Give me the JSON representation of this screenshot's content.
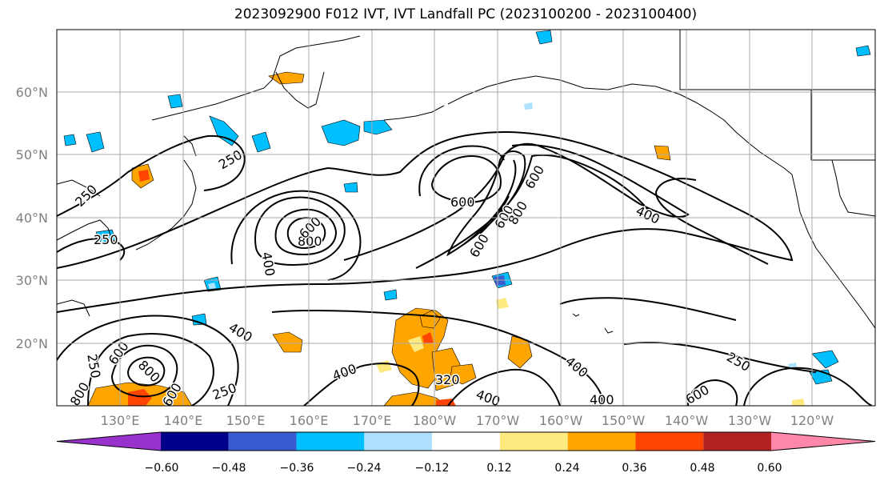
{
  "title": "2023092900 F012 IVT, IVT Landfall PC (2023100200 - 2023100400)",
  "map": {
    "lat_labels": [
      "20°N",
      "30°N",
      "40°N",
      "50°N",
      "60°N"
    ],
    "lon_labels": [
      "130°E",
      "140°E",
      "150°E",
      "160°E",
      "170°E",
      "180°W",
      "170°W",
      "160°W",
      "150°W",
      "140°W",
      "130°W",
      "120°W"
    ],
    "contour_labels": [
      "250",
      "250",
      "250",
      "600",
      "800",
      "400",
      "600",
      "600",
      "600",
      "400",
      "600",
      "400",
      "800",
      "250",
      "600",
      "250",
      "400",
      "400",
      "400",
      "400",
      "250",
      "600",
      "600",
      "800",
      "800",
      "320"
    ]
  },
  "colorbar": {
    "colors": [
      "#9932cc",
      "#00008b",
      "#3a5bd0",
      "#00bfff",
      "#b0e0ff",
      "#ffffff",
      "#ffea80",
      "#ffa500",
      "#ff4500",
      "#b22222",
      "#ff88aa"
    ],
    "tick_labels": [
      "−0.60",
      "−0.48",
      "−0.36",
      "−0.24",
      "−0.12",
      "0.12",
      "0.24",
      "0.36",
      "0.48",
      "0.60"
    ]
  }
}
